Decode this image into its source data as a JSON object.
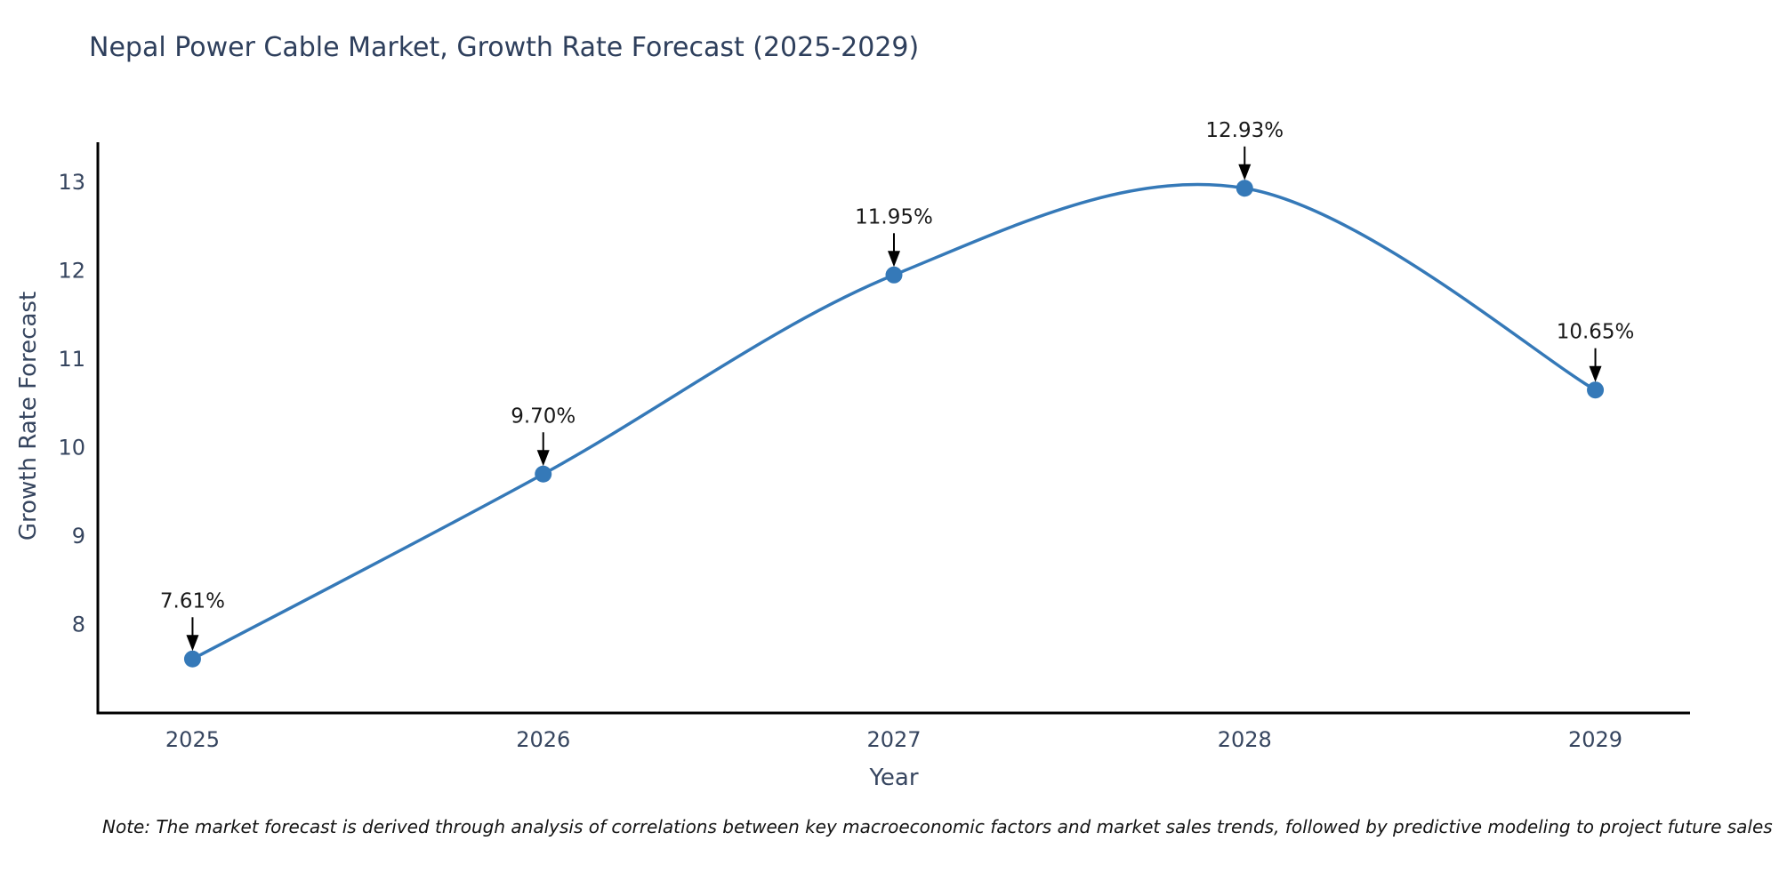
{
  "title": "Nepal Power Cable Market, Growth Rate Forecast (2025-2029)",
  "note": "Note: The market forecast is derived through analysis of correlations between key macroeconomic factors and market sales trends, followed by predictive modeling to project future sales",
  "chart_data": {
    "type": "line",
    "title": "Nepal Power Cable Market, Growth Rate Forecast (2025-2029)",
    "xlabel": "Year",
    "ylabel": "Growth Rate Forecast",
    "x": [
      2025,
      2026,
      2027,
      2028,
      2029
    ],
    "categories": [
      "2025",
      "2026",
      "2027",
      "2028",
      "2029"
    ],
    "values": [
      7.61,
      9.7,
      11.95,
      12.93,
      10.65
    ],
    "point_labels": [
      "7.61%",
      "9.70%",
      "11.95%",
      "12.93%",
      "10.65%"
    ],
    "yticks": [
      8,
      9,
      10,
      11,
      12,
      13
    ],
    "ylim": [
      7.0,
      13.45
    ],
    "xlim": [
      2024.73,
      2029.27
    ],
    "grid": false,
    "legend": null,
    "curve": "spline",
    "marker": "circle",
    "line_color": "#3579b8",
    "marker_color": "#3579b8",
    "axis_color": "#000000",
    "tick_color": "#36455f",
    "annotation_color": "#191919",
    "arrow_color": "#000000"
  }
}
